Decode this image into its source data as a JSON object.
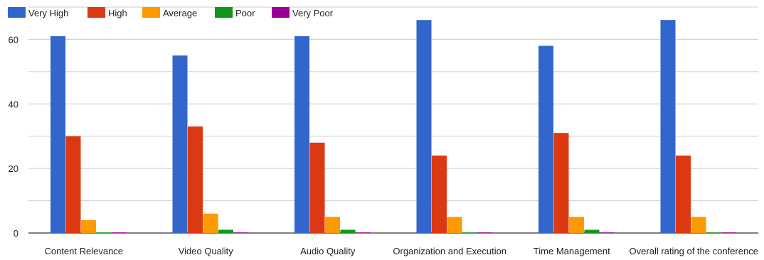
{
  "chart_data": {
    "type": "bar",
    "title": "",
    "xlabel": "",
    "ylabel": "",
    "ylim": [
      0,
      70
    ],
    "yticks": [
      0,
      20,
      40,
      60
    ],
    "grid": true,
    "legend_position": "top-left",
    "categories": [
      "Content Relevance",
      "Video Quality",
      "Audio Quality",
      "Organization and Execution",
      "Time Management",
      "Overall rating of the conference"
    ],
    "series": [
      {
        "name": "Very High",
        "color": "#3366cc",
        "values": [
          61,
          55,
          61,
          66,
          58,
          66
        ]
      },
      {
        "name": "High",
        "color": "#dc3912",
        "values": [
          30,
          33,
          28,
          24,
          31,
          24
        ]
      },
      {
        "name": "Average",
        "color": "#ff9900",
        "values": [
          4,
          6,
          5,
          5,
          5,
          5
        ]
      },
      {
        "name": "Poor",
        "color": "#109618",
        "values": [
          0,
          1,
          1,
          0,
          1,
          0
        ]
      },
      {
        "name": "Very Poor",
        "color": "#990099",
        "values": [
          0,
          0,
          0,
          0,
          0,
          0
        ]
      }
    ]
  }
}
